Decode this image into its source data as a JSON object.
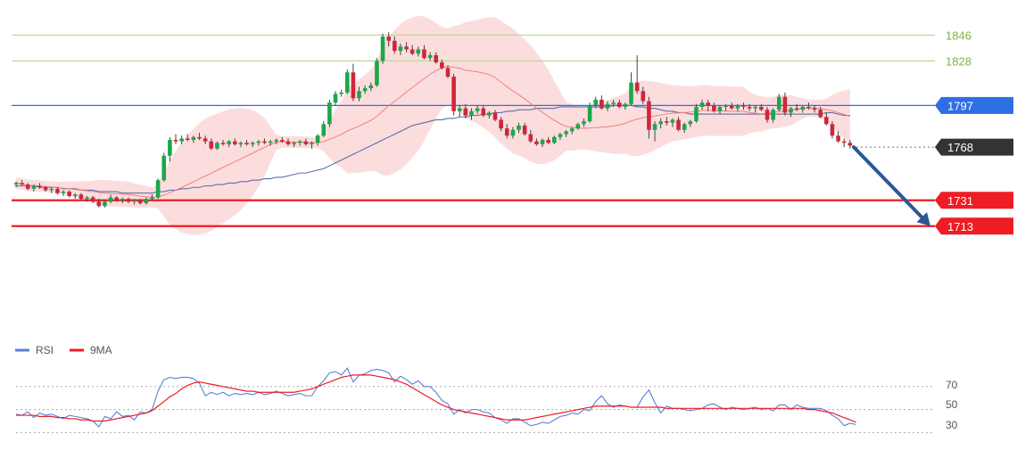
{
  "chart_data": [
    {
      "type": "candlestick",
      "title": "",
      "xlabel": "",
      "ylabel": "",
      "ylim": [
        1662,
        1858
      ],
      "candles": [
        [
          1742,
          1744,
          1740,
          1743
        ],
        [
          1743,
          1745,
          1741,
          1742
        ],
        [
          1742,
          1743,
          1738,
          1739
        ],
        [
          1739,
          1742,
          1737,
          1741
        ],
        [
          1741,
          1743,
          1739,
          1740
        ],
        [
          1740,
          1741,
          1737,
          1738
        ],
        [
          1738,
          1740,
          1736,
          1739
        ],
        [
          1739,
          1740,
          1735,
          1736
        ],
        [
          1736,
          1738,
          1734,
          1737
        ],
        [
          1737,
          1738,
          1733,
          1734
        ],
        [
          1734,
          1736,
          1732,
          1735
        ],
        [
          1735,
          1736,
          1731,
          1732
        ],
        [
          1732,
          1734,
          1730,
          1733
        ],
        [
          1733,
          1734,
          1729,
          1730
        ],
        [
          1730,
          1732,
          1726,
          1727
        ],
        [
          1727,
          1731,
          1726,
          1730
        ],
        [
          1730,
          1735,
          1729,
          1733
        ],
        [
          1733,
          1734,
          1730,
          1731
        ],
        [
          1731,
          1733,
          1729,
          1732
        ],
        [
          1732,
          1733,
          1729,
          1730
        ],
        [
          1730,
          1732,
          1728,
          1731
        ],
        [
          1731,
          1732,
          1728,
          1729
        ],
        [
          1729,
          1733,
          1728,
          1732
        ],
        [
          1732,
          1735,
          1731,
          1733
        ],
        [
          1733,
          1746,
          1732,
          1745
        ],
        [
          1745,
          1764,
          1744,
          1762
        ],
        [
          1762,
          1775,
          1758,
          1773
        ],
        [
          1773,
          1777,
          1770,
          1772
        ],
        [
          1772,
          1776,
          1770,
          1774
        ],
        [
          1774,
          1777,
          1772,
          1773
        ],
        [
          1773,
          1776,
          1771,
          1775
        ],
        [
          1775,
          1778,
          1773,
          1774
        ],
        [
          1774,
          1776,
          1770,
          1772
        ],
        [
          1772,
          1774,
          1766,
          1767
        ],
        [
          1767,
          1772,
          1766,
          1771
        ],
        [
          1771,
          1773,
          1769,
          1770
        ],
        [
          1770,
          1773,
          1768,
          1772
        ],
        [
          1772,
          1774,
          1769,
          1770
        ],
        [
          1770,
          1772,
          1768,
          1771
        ],
        [
          1771,
          1773,
          1769,
          1770
        ],
        [
          1770,
          1772,
          1768,
          1771
        ],
        [
          1771,
          1773,
          1769,
          1772
        ],
        [
          1772,
          1774,
          1770,
          1771
        ],
        [
          1771,
          1773,
          1769,
          1772
        ],
        [
          1772,
          1774,
          1770,
          1773
        ],
        [
          1773,
          1775,
          1771,
          1772
        ],
        [
          1772,
          1774,
          1769,
          1770
        ],
        [
          1770,
          1772,
          1768,
          1771
        ],
        [
          1771,
          1773,
          1769,
          1772
        ],
        [
          1772,
          1774,
          1769,
          1770
        ],
        [
          1770,
          1772,
          1767,
          1771
        ],
        [
          1771,
          1777,
          1769,
          1776
        ],
        [
          1776,
          1786,
          1775,
          1784
        ],
        [
          1784,
          1801,
          1782,
          1799
        ],
        [
          1799,
          1807,
          1797,
          1805
        ],
        [
          1805,
          1808,
          1803,
          1806
        ],
        [
          1806,
          1822,
          1805,
          1820
        ],
        [
          1820,
          1826,
          1800,
          1802
        ],
        [
          1802,
          1810,
          1800,
          1807
        ],
        [
          1807,
          1811,
          1805,
          1809
        ],
        [
          1809,
          1813,
          1807,
          1811
        ],
        [
          1811,
          1830,
          1810,
          1828
        ],
        [
          1828,
          1847,
          1826,
          1845
        ],
        [
          1845,
          1848,
          1838,
          1842
        ],
        [
          1842,
          1845,
          1833,
          1835
        ],
        [
          1835,
          1840,
          1832,
          1838
        ],
        [
          1838,
          1841,
          1834,
          1836
        ],
        [
          1836,
          1839,
          1832,
          1833
        ],
        [
          1833,
          1838,
          1831,
          1836
        ],
        [
          1836,
          1839,
          1829,
          1830
        ],
        [
          1830,
          1834,
          1828,
          1832
        ],
        [
          1832,
          1834,
          1826,
          1827
        ],
        [
          1827,
          1829,
          1822,
          1823
        ],
        [
          1823,
          1825,
          1816,
          1817
        ],
        [
          1817,
          1819,
          1790,
          1793
        ],
        [
          1793,
          1797,
          1789,
          1795
        ],
        [
          1795,
          1798,
          1788,
          1790
        ],
        [
          1790,
          1795,
          1787,
          1793
        ],
        [
          1793,
          1797,
          1791,
          1795
        ],
        [
          1795,
          1797,
          1789,
          1790
        ],
        [
          1790,
          1793,
          1788,
          1792
        ],
        [
          1792,
          1794,
          1786,
          1787
        ],
        [
          1787,
          1789,
          1779,
          1781
        ],
        [
          1781,
          1784,
          1774,
          1776
        ],
        [
          1776,
          1782,
          1774,
          1780
        ],
        [
          1780,
          1785,
          1778,
          1783
        ],
        [
          1783,
          1785,
          1776,
          1777
        ],
        [
          1777,
          1780,
          1771,
          1772
        ],
        [
          1772,
          1774,
          1769,
          1770
        ],
        [
          1770,
          1774,
          1768,
          1773
        ],
        [
          1773,
          1775,
          1770,
          1771
        ],
        [
          1771,
          1776,
          1770,
          1775
        ],
        [
          1775,
          1778,
          1773,
          1777
        ],
        [
          1777,
          1780,
          1775,
          1779
        ],
        [
          1779,
          1782,
          1777,
          1781
        ],
        [
          1781,
          1785,
          1780,
          1784
        ],
        [
          1784,
          1788,
          1782,
          1786
        ],
        [
          1786,
          1799,
          1785,
          1797
        ],
        [
          1797,
          1803,
          1795,
          1801
        ],
        [
          1801,
          1804,
          1794,
          1795
        ],
        [
          1795,
          1800,
          1793,
          1798
        ],
        [
          1798,
          1801,
          1796,
          1799
        ],
        [
          1799,
          1801,
          1795,
          1796
        ],
        [
          1796,
          1799,
          1794,
          1798
        ],
        [
          1798,
          1820,
          1797,
          1813
        ],
        [
          1813,
          1832,
          1805,
          1807
        ],
        [
          1807,
          1810,
          1798,
          1800
        ],
        [
          1800,
          1803,
          1774,
          1780
        ],
        [
          1780,
          1786,
          1772,
          1784
        ],
        [
          1784,
          1788,
          1781,
          1786
        ],
        [
          1786,
          1789,
          1783,
          1785
        ],
        [
          1785,
          1788,
          1782,
          1787
        ],
        [
          1787,
          1789,
          1779,
          1780
        ],
        [
          1780,
          1785,
          1778,
          1784
        ],
        [
          1784,
          1787,
          1782,
          1786
        ],
        [
          1786,
          1798,
          1785,
          1796
        ],
        [
          1796,
          1801,
          1794,
          1799
        ],
        [
          1799,
          1801,
          1793,
          1797
        ],
        [
          1797,
          1799,
          1792,
          1793
        ],
        [
          1793,
          1797,
          1791,
          1796
        ],
        [
          1796,
          1798,
          1793,
          1797
        ],
        [
          1797,
          1799,
          1794,
          1795
        ],
        [
          1795,
          1798,
          1793,
          1797
        ],
        [
          1797,
          1799,
          1794,
          1796
        ],
        [
          1796,
          1798,
          1793,
          1795
        ],
        [
          1795,
          1797,
          1792,
          1796
        ],
        [
          1796,
          1798,
          1793,
          1794
        ],
        [
          1794,
          1796,
          1785,
          1787
        ],
        [
          1787,
          1795,
          1785,
          1794
        ],
        [
          1794,
          1805,
          1793,
          1803
        ],
        [
          1803,
          1806,
          1790,
          1792
        ],
        [
          1792,
          1796,
          1789,
          1795
        ],
        [
          1795,
          1798,
          1793,
          1794
        ],
        [
          1794,
          1797,
          1792,
          1796
        ],
        [
          1796,
          1799,
          1794,
          1795
        ],
        [
          1795,
          1797,
          1792,
          1794
        ],
        [
          1794,
          1796,
          1788,
          1789
        ],
        [
          1789,
          1792,
          1783,
          1784
        ],
        [
          1784,
          1786,
          1774,
          1776
        ],
        [
          1776,
          1779,
          1771,
          1772
        ],
        [
          1772,
          1774,
          1768,
          1771
        ],
        [
          1771,
          1773,
          1767,
          1769
        ]
      ],
      "sma": [
        1741,
        1741,
        1741,
        1741,
        1740,
        1740,
        1740,
        1740,
        1739,
        1739,
        1739,
        1738,
        1738,
        1738,
        1737,
        1737,
        1737,
        1737,
        1736,
        1736,
        1736,
        1736,
        1736,
        1736,
        1737,
        1737,
        1738,
        1738,
        1739,
        1739,
        1740,
        1740,
        1741,
        1741,
        1742,
        1742,
        1743,
        1743,
        1744,
        1744,
        1745,
        1745,
        1746,
        1746,
        1747,
        1747,
        1748,
        1749,
        1750,
        1750,
        1751,
        1752,
        1753,
        1755,
        1757,
        1759,
        1761,
        1763,
        1765,
        1767,
        1769,
        1771,
        1773,
        1775,
        1777,
        1779,
        1781,
        1783,
        1784,
        1785,
        1786,
        1787,
        1787,
        1788,
        1788,
        1789,
        1789,
        1790,
        1790,
        1791,
        1791,
        1792,
        1792,
        1793,
        1793,
        1794,
        1794,
        1794,
        1795,
        1795,
        1795,
        1795,
        1796,
        1796,
        1796,
        1796,
        1796,
        1796,
        1796,
        1796,
        1796,
        1797,
        1797,
        1797,
        1797,
        1796,
        1796,
        1795,
        1795,
        1794,
        1793,
        1793,
        1792,
        1792,
        1791,
        1791,
        1791,
        1791,
        1791,
        1791,
        1791,
        1791,
        1791,
        1791,
        1791,
        1791,
        1791,
        1791,
        1791,
        1791,
        1791,
        1791,
        1791,
        1791,
        1791,
        1791,
        1791,
        1792,
        1792,
        1791,
        1790,
        1790
      ],
      "rsi": [
        46,
        45,
        48,
        43,
        47,
        45,
        46,
        44,
        42,
        45,
        44,
        43,
        42,
        40,
        35,
        44,
        42,
        48,
        44,
        45,
        41,
        48,
        47,
        50,
        66,
        76,
        78,
        77,
        78,
        78,
        77,
        73,
        62,
        65,
        63,
        65,
        62,
        64,
        63,
        64,
        63,
        65,
        63,
        64,
        66,
        64,
        62,
        63,
        64,
        62,
        62,
        70,
        75,
        82,
        83,
        80,
        86,
        74,
        80,
        81,
        84,
        85,
        84,
        82,
        74,
        79,
        76,
        72,
        75,
        70,
        70,
        65,
        58,
        55,
        46,
        50,
        47,
        50,
        50,
        48,
        47,
        43,
        41,
        38,
        42,
        42,
        39,
        36,
        37,
        39,
        38,
        41,
        44,
        45,
        47,
        46,
        50,
        49,
        57,
        62,
        55,
        52,
        54,
        53,
        52,
        52,
        61,
        67,
        56,
        47,
        53,
        51,
        51,
        50,
        49,
        50,
        51,
        54,
        55,
        52,
        50,
        52,
        51,
        50,
        51,
        52,
        50,
        51,
        49,
        54,
        54,
        50,
        54,
        52,
        51,
        51,
        51,
        49,
        45,
        42,
        36,
        38,
        37
      ],
      "rsi_ma": [
        45,
        45,
        45,
        45,
        44,
        44,
        44,
        43,
        43,
        42,
        42,
        41,
        41,
        40,
        40,
        40,
        41,
        42,
        43,
        44,
        45,
        46,
        47,
        49,
        53,
        57,
        61,
        64,
        68,
        71,
        73,
        74,
        73,
        72,
        71,
        70,
        69,
        68,
        67,
        66,
        66,
        65,
        65,
        65,
        65,
        65,
        65,
        65,
        66,
        67,
        68,
        70,
        72,
        74,
        76,
        78,
        79,
        80,
        80,
        80,
        80,
        79,
        78,
        77,
        76,
        74,
        72,
        69,
        66,
        63,
        60,
        57,
        54,
        52,
        50,
        49,
        48,
        47,
        46,
        45,
        44,
        43,
        42,
        41,
        41,
        41,
        41,
        42,
        43,
        44,
        45,
        46,
        47,
        48,
        49,
        50,
        51,
        52,
        53,
        53,
        53,
        53,
        53,
        53,
        52,
        52,
        52,
        52,
        52,
        52,
        51,
        51,
        51,
        51,
        51,
        51,
        51,
        51,
        51,
        51,
        51,
        51,
        51,
        51,
        51,
        51,
        51,
        51,
        51,
        51,
        51,
        51,
        51,
        51,
        50,
        50,
        49,
        48,
        47,
        45,
        43,
        41,
        39
      ],
      "levels": [
        {
          "value": 1846,
          "label": "1846",
          "color": "#8bc34a",
          "kind": "resistance"
        },
        {
          "value": 1828,
          "label": "1828",
          "color": "#8bc34a",
          "kind": "resistance"
        },
        {
          "value": 1797,
          "label": "1797",
          "color": "#2f6fe4",
          "kind": "pivot"
        },
        {
          "value": 1768,
          "label": "1768",
          "color": "#333333",
          "kind": "last"
        },
        {
          "value": 1731,
          "label": "1731",
          "color": "#ee1c25",
          "kind": "support"
        },
        {
          "value": 1713,
          "label": "1713",
          "color": "#ee1c25",
          "kind": "support"
        }
      ],
      "forecast_arrow": {
        "from": 1768,
        "to": 1713,
        "color": "#2b5797"
      },
      "colors": {
        "up": "#1aa84a",
        "down": "#d0263c",
        "band": "#fbd2d2",
        "sma": "#5a6fa8",
        "mid": "#f08080"
      },
      "grid": false
    },
    {
      "type": "line",
      "title": "",
      "legend": [
        {
          "name": "RSI",
          "color": "#5b7fd6"
        },
        {
          "name": "9MA",
          "color": "#ee1c25"
        }
      ],
      "ylim": [
        28,
        90
      ],
      "yticks": [
        "70",
        "50",
        "30"
      ],
      "ytick_values": [
        70,
        50,
        30
      ],
      "grid": false
    }
  ]
}
